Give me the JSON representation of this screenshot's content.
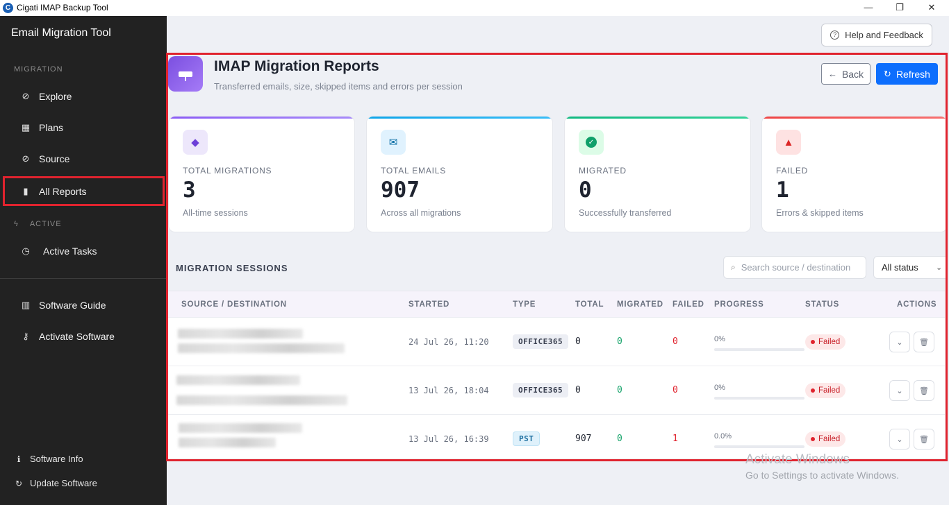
{
  "window": {
    "title": "Cigati IMAP Backup Tool",
    "app_icon_letter": "C",
    "minimize": "—",
    "maximize": "❐",
    "close": "✕"
  },
  "sidebar": {
    "brand": "Email Migration Tool",
    "section_migration": "MIGRATION",
    "section_active": "ACTIVE",
    "items": [
      {
        "label": "Explore",
        "icon": "compass-icon",
        "glyph": "⊘"
      },
      {
        "label": "Plans",
        "icon": "grid-icon",
        "glyph": "▦"
      },
      {
        "label": "Source",
        "icon": "compass-icon",
        "glyph": "⊘"
      },
      {
        "label": "All Reports",
        "icon": "bar-chart-icon",
        "glyph": "▮"
      },
      {
        "label": "Active Tasks",
        "icon": "clock-icon",
        "glyph": "◷"
      },
      {
        "label": "Software Guide",
        "icon": "book-icon",
        "glyph": "▥"
      },
      {
        "label": "Activate Software",
        "icon": "key-icon",
        "glyph": "⚷"
      }
    ],
    "footer": [
      {
        "label": "Software Info",
        "icon": "info-icon",
        "glyph": "ℹ"
      },
      {
        "label": "Update Software",
        "icon": "refresh-icon",
        "glyph": "↻"
      }
    ],
    "active_glyph": "ϟ"
  },
  "header": {
    "help_label": "Help and Feedback",
    "title": "IMAP Migration Reports",
    "subtitle": "Transferred emails, size, skipped items and errors per session",
    "back_label": "Back",
    "refresh_label": "Refresh"
  },
  "stats": [
    {
      "label": "TOTAL MIGRATIONS",
      "value": "3",
      "desc": "All-time sessions",
      "accent": "#8b5cf6",
      "icon": "layers-icon"
    },
    {
      "label": "TOTAL EMAILS",
      "value": "907",
      "desc": "Across all migrations",
      "accent": "#0ea5e9",
      "icon": "mail-icon"
    },
    {
      "label": "MIGRATED",
      "value": "0",
      "desc": "Successfully transferred",
      "accent": "#10b981",
      "icon": "check-icon"
    },
    {
      "label": "FAILED",
      "value": "1",
      "desc": "Errors & skipped items",
      "accent": "#ef4444",
      "icon": "warning-icon"
    }
  ],
  "sessions": {
    "title": "MIGRATION SESSIONS",
    "search_placeholder": "Search source / destination",
    "status_filter": "All status",
    "columns": [
      "SOURCE / DESTINATION",
      "STARTED",
      "TYPE",
      "TOTAL",
      "MIGRATED",
      "FAILED",
      "PROGRESS",
      "STATUS",
      "ACTIONS"
    ],
    "rows": [
      {
        "started": "24 Jul 26, 11:20",
        "type": "OFFICE365",
        "total": "0",
        "migrated": "0",
        "failed": "0",
        "progress": "0%",
        "progress_value": 0,
        "status": "Failed"
      },
      {
        "started": "13 Jul 26, 18:04",
        "type": "OFFICE365",
        "total": "0",
        "migrated": "0",
        "failed": "0",
        "progress": "0%",
        "progress_value": 0,
        "status": "Failed"
      },
      {
        "started": "13 Jul 26, 16:39",
        "type": "PST",
        "total": "907",
        "migrated": "0",
        "failed": "1",
        "progress": "0.0%",
        "progress_value": 0,
        "status": "Failed"
      }
    ]
  },
  "watermark": {
    "line1": "Activate Windows",
    "line2": "Go to Settings to activate Windows."
  }
}
